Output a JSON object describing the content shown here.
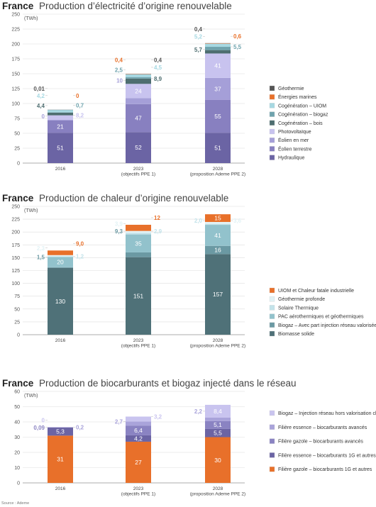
{
  "source": "Source : Ademe",
  "chart_data": [
    {
      "type": "bar",
      "stacked": true,
      "title_bold": "France",
      "title": "Production d’électricité d’origine renouvelable",
      "unit": "(TWh)",
      "ylim": [
        0,
        250
      ],
      "yticks": [
        0,
        25,
        50,
        75,
        100,
        125,
        150,
        175,
        200,
        225,
        250
      ],
      "categories": [
        [
          "2016"
        ],
        [
          "2023",
          "(objectifs PPE 1)"
        ],
        [
          "2028",
          "(proposition Ademe PPE 2)"
        ]
      ],
      "series": [
        {
          "name": "Hydraulique",
          "color": "#6b64a4",
          "values": [
            51,
            52,
            51
          ],
          "labels": [
            "51",
            "52",
            "51"
          ]
        },
        {
          "name": "Éolien terrestre",
          "color": "#8880c0",
          "values": [
            21,
            47,
            55
          ],
          "labels": [
            "21",
            "47",
            "55"
          ]
        },
        {
          "name": "Éolien en mer",
          "color": "#a59fd8",
          "values": [
            0,
            10,
            37
          ],
          "labels": [
            "0",
            "10",
            "37"
          ]
        },
        {
          "name": "Photovoltaïque",
          "color": "#c8c3ef",
          "values": [
            8.2,
            24,
            41
          ],
          "labels": [
            "8,2",
            "24",
            "41"
          ]
        },
        {
          "name": "Cogénération – bois",
          "color": "#4e6e70",
          "values": [
            4.4,
            8.9,
            5.7
          ],
          "labels": [
            "4,4",
            "8,9",
            "5,7"
          ]
        },
        {
          "name": "Cogénération – biogaz",
          "color": "#6fa3ad",
          "values": [
            0.7,
            2.5,
            5.5
          ],
          "labels": [
            "0,7",
            "2,5",
            "5,5"
          ]
        },
        {
          "name": "Cogénération – UIOM",
          "color": "#a6d8e2",
          "values": [
            4.2,
            4.5,
            5.2
          ],
          "labels": [
            "4,2",
            "4,5",
            "5,2"
          ]
        },
        {
          "name": "Énergies marines",
          "color": "#e8702a",
          "values": [
            0,
            0.4,
            0.6
          ],
          "labels": [
            "0",
            "0,4",
            "0,6"
          ]
        },
        {
          "name": "Géothermie",
          "color": "#555555",
          "values": [
            0.01,
            0.4,
            0.4
          ],
          "labels": [
            "0,01",
            "0,4",
            "0,4"
          ]
        }
      ]
    },
    {
      "type": "bar",
      "stacked": true,
      "title_bold": "France",
      "title": "Production de chaleur d’origine renouvelable",
      "unit": "(TWh)",
      "ylim": [
        0,
        250
      ],
      "yticks": [
        0,
        25,
        50,
        75,
        100,
        125,
        150,
        175,
        200,
        225,
        250
      ],
      "categories": [
        [
          "2016"
        ],
        [
          "2023",
          "(objectifs PPE 1)"
        ],
        [
          "2028",
          "(proposition Ademe PPE 2)"
        ]
      ],
      "series": [
        {
          "name": "Biomasse solide",
          "color": "#4f7178",
          "values": [
            130,
            151,
            157
          ],
          "labels": [
            "130",
            "151",
            "157"
          ]
        },
        {
          "name": "Biogaz – Avec part injection réseau valorisée en chaleur (60%)",
          "color": "#6b99a3",
          "values": [
            1.5,
            9.3,
            16
          ],
          "labels": [
            "1,5",
            "9,3",
            "16"
          ]
        },
        {
          "name": "PAC aérothermiques et géothermiques",
          "color": "#92c2cc",
          "values": [
            20,
            35,
            41
          ],
          "labels": [
            "20",
            "35",
            "41"
          ]
        },
        {
          "name": "Solaire Thermique",
          "color": "#c3e3ea",
          "values": [
            1.2,
            2.9,
            2.0
          ],
          "labels": [
            "1,2",
            "2,9",
            "2,0"
          ]
        },
        {
          "name": "Géothermie profonde",
          "color": "#e2f2f5",
          "values": [
            2.3,
            3.9,
            3.6
          ],
          "labels": [
            "2,3",
            "3,9",
            "3,6"
          ]
        },
        {
          "name": "UIOM et Chaleur fatale industrielle",
          "color": "#e8702a",
          "values": [
            9.0,
            12,
            15
          ],
          "labels": [
            "9,0",
            "12",
            "15"
          ]
        }
      ]
    },
    {
      "type": "bar",
      "stacked": true,
      "title_bold": "France",
      "title": "Production de biocarburants et biogaz injecté dans le réseau",
      "unit": "(TWh)",
      "ylim": [
        0,
        60
      ],
      "yticks": [
        0,
        10,
        20,
        30,
        40,
        50,
        60
      ],
      "categories": [
        [
          "2016"
        ],
        [
          "2023",
          "(objectifs PPE 1)"
        ],
        [
          "2028",
          "(proposition Ademe PPE 2)"
        ]
      ],
      "series": [
        {
          "name": "Filière gazole – biocarburants 1G et autres",
          "color": "#e8702a",
          "values": [
            31,
            27,
            30
          ],
          "labels": [
            "31",
            "27",
            "30"
          ]
        },
        {
          "name": "Filière essence – biocarburants 1G et autres",
          "color": "#6b64a4",
          "values": [
            5.3,
            4.2,
            5.5
          ],
          "labels": [
            "5,3",
            "4,2",
            "5,5"
          ]
        },
        {
          "name": "Filière gazole – biocarburants avancés",
          "color": "#8a83c2",
          "values": [
            0.09,
            6.4,
            5.1
          ],
          "labels": [
            "0,09",
            "6,4",
            "5,1"
          ]
        },
        {
          "name": "Filière essence – biocarburants avancés",
          "color": "#a9a3da",
          "values": [
            0.2,
            2.7,
            2.2
          ],
          "labels": [
            "0,2",
            "2,7",
            "2,2"
          ]
        },
        {
          "name": "Biogaz – Injection réseau hors valorisation chaleur",
          "color": "#c9c4ef",
          "values": [
            0,
            3.2,
            8.4
          ],
          "labels": [
            "0",
            "3,2",
            "8,4"
          ]
        }
      ]
    }
  ]
}
